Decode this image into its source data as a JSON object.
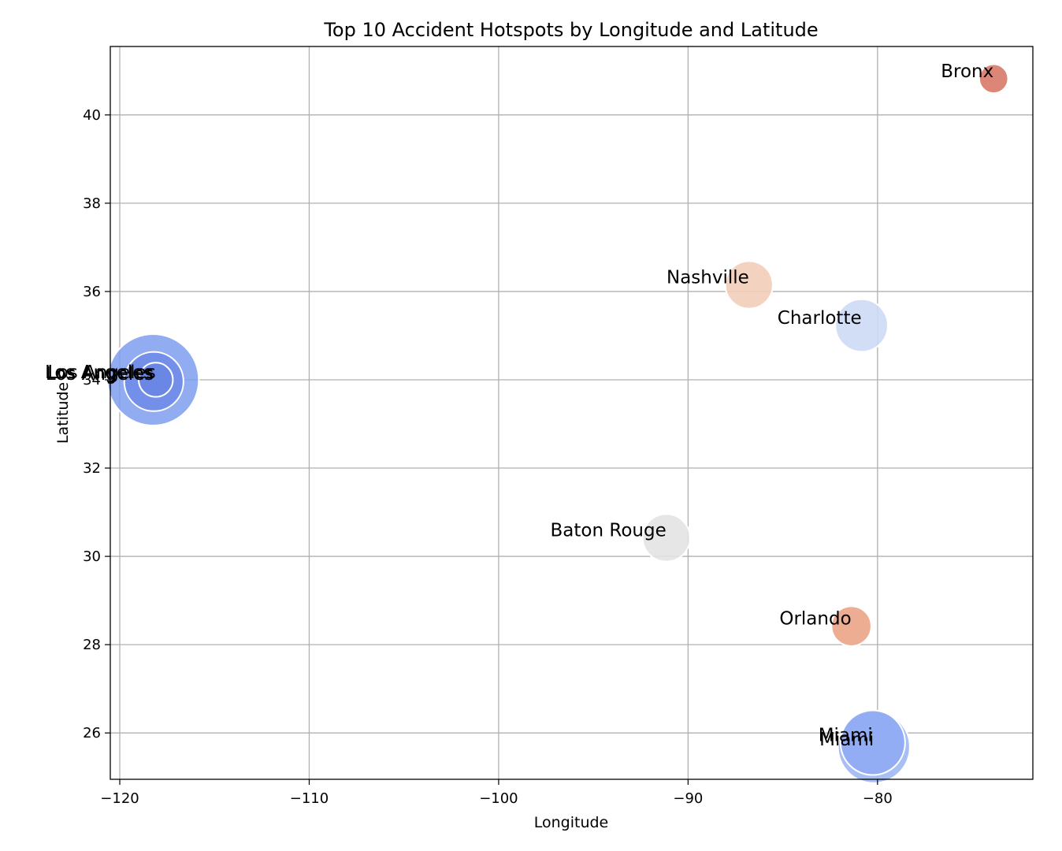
{
  "chart_data": {
    "type": "scatter",
    "title": "Top 10 Accident Hotspots by Longitude and Latitude",
    "xlabel": "Longitude",
    "ylabel": "Latitude",
    "xlim": [
      -120.5,
      -71.8
    ],
    "ylim": [
      24.95,
      41.55
    ],
    "xticks": [
      -120,
      -110,
      -100,
      -90,
      -80
    ],
    "xtick_labels": [
      "−120",
      "−110",
      "−100",
      "−90",
      "−80"
    ],
    "yticks": [
      26,
      28,
      30,
      32,
      34,
      36,
      38,
      40
    ],
    "ytick_labels": [
      "26",
      "28",
      "30",
      "32",
      "34",
      "36",
      "38",
      "40"
    ],
    "grid": true,
    "points": [
      {
        "name": "Los Angeles",
        "x": -118.24,
        "y": 34.0,
        "size": 1.0,
        "color": "#7f9df0",
        "opacity": 0.85
      },
      {
        "name": "Los Angeles",
        "x": -118.2,
        "y": 33.96,
        "size": 0.42,
        "color": "#6f8ae8",
        "opacity": 0.85
      },
      {
        "name": "Los Angeles",
        "x": -118.1,
        "y": 34.0,
        "size": 0.14,
        "color": "#6a86e6",
        "opacity": 0.9
      },
      {
        "name": "Miami",
        "x": -80.19,
        "y": 25.68,
        "size": 0.62,
        "color": "#9fb8f5",
        "opacity": 0.9
      },
      {
        "name": "Miami",
        "x": -80.25,
        "y": 25.78,
        "size": 0.5,
        "color": "#8fabf3",
        "opacity": 0.9
      },
      {
        "name": "Charlotte",
        "x": -80.84,
        "y": 35.23,
        "size": 0.33,
        "color": "#cddaf5",
        "opacity": 0.9
      },
      {
        "name": "Nashville",
        "x": -86.78,
        "y": 36.15,
        "size": 0.27,
        "color": "#f2cdb8",
        "opacity": 0.9
      },
      {
        "name": "Baton Rouge",
        "x": -91.15,
        "y": 30.42,
        "size": 0.27,
        "color": "#e3e3e3",
        "opacity": 0.9
      },
      {
        "name": "Orlando",
        "x": -81.38,
        "y": 28.42,
        "size": 0.19,
        "color": "#eba98d",
        "opacity": 0.95
      },
      {
        "name": "Bronx",
        "x": -73.87,
        "y": 40.82,
        "size": 0.1,
        "color": "#d9806f",
        "opacity": 0.95
      }
    ]
  }
}
